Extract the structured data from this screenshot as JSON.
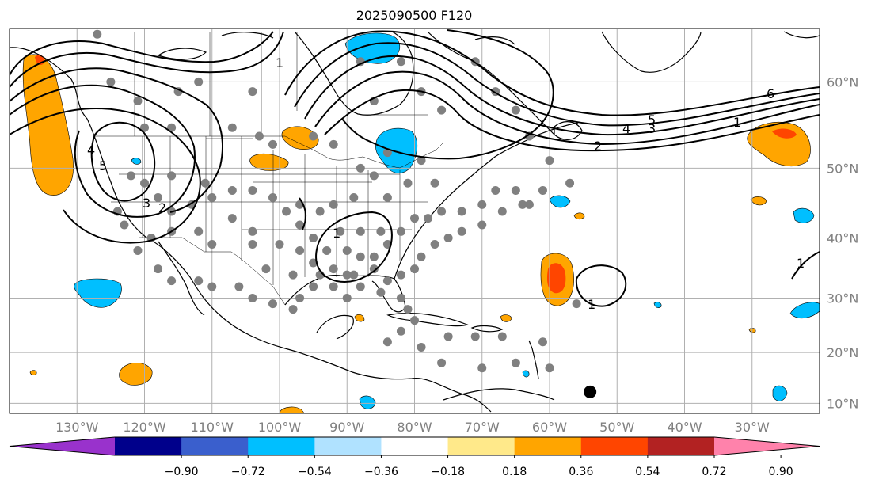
{
  "title": "2025090500 F120",
  "map": {
    "lon_range": [
      -140,
      -20
    ],
    "lat_range": [
      8,
      65
    ],
    "lon_ticks": [
      {
        "value": -130,
        "label": "130°W"
      },
      {
        "value": -120,
        "label": "120°W"
      },
      {
        "value": -110,
        "label": "110°W"
      },
      {
        "value": -100,
        "label": "100°W"
      },
      {
        "value": -90,
        "label": "90°W"
      },
      {
        "value": -80,
        "label": "80°W"
      },
      {
        "value": -70,
        "label": "70°W"
      },
      {
        "value": -60,
        "label": "60°W"
      },
      {
        "value": -50,
        "label": "50°W"
      },
      {
        "value": -40,
        "label": "40°W"
      },
      {
        "value": -30,
        "label": "30°W"
      }
    ],
    "lat_ticks": [
      {
        "value": 60,
        "label": "60°N"
      },
      {
        "value": 50,
        "label": "50°N"
      },
      {
        "value": 40,
        "label": "40°N"
      },
      {
        "value": 30,
        "label": "30°N"
      },
      {
        "value": 20,
        "label": "20°N"
      },
      {
        "value": 10,
        "label": "10°N"
      }
    ],
    "grid": true
  },
  "colorbar": {
    "boundaries": [
      -0.9,
      -0.72,
      -0.54,
      -0.36,
      -0.18,
      0.18,
      0.36,
      0.54,
      0.72,
      0.9
    ],
    "tick_labels": [
      "−0.90",
      "−0.72",
      "−0.54",
      "−0.36",
      "−0.18",
      "0.18",
      "0.36",
      "0.54",
      "0.72",
      "0.90"
    ],
    "colors": [
      "#9932cc",
      "#00008b",
      "#3a5fcd",
      "#00bfff",
      "#b0e2ff",
      "#ffffff",
      "#ffe98a",
      "#ffa500",
      "#ff4500",
      "#b22222",
      "#ff82ab"
    ],
    "extend": "both"
  },
  "contour_labels": [
    "6",
    "5",
    "4",
    "3",
    "2",
    "1",
    "4",
    "5",
    "3",
    "2",
    "1",
    "1",
    "1",
    "1"
  ],
  "storm_marker": {
    "lon": -54,
    "lat": 12.3,
    "color": "#000000"
  },
  "station_points": [
    [
      -127,
      64.5
    ],
    [
      -125,
      60
    ],
    [
      -121,
      58
    ],
    [
      -120,
      55
    ],
    [
      -116,
      55
    ],
    [
      -115,
      59
    ],
    [
      -112,
      60
    ],
    [
      -107,
      55
    ],
    [
      -104,
      59
    ],
    [
      -103,
      54
    ],
    [
      -101,
      53
    ],
    [
      -95,
      54
    ],
    [
      -92,
      53
    ],
    [
      -88,
      62
    ],
    [
      -86,
      58
    ],
    [
      -82,
      62
    ],
    [
      -79,
      59
    ],
    [
      -76,
      57
    ],
    [
      -71,
      62
    ],
    [
      -68,
      59
    ],
    [
      -65,
      57
    ],
    [
      -63,
      54
    ],
    [
      -60,
      51
    ],
    [
      -57,
      48
    ],
    [
      -61,
      47
    ],
    [
      -64,
      45
    ],
    [
      -67,
      44
    ],
    [
      -70,
      42
    ],
    [
      -73,
      41
    ],
    [
      -75,
      40
    ],
    [
      -77,
      39
    ],
    [
      -79,
      37
    ],
    [
      -80,
      35
    ],
    [
      -82,
      34
    ],
    [
      -84,
      33
    ],
    [
      -85,
      31
    ],
    [
      -82,
      30
    ],
    [
      -81,
      28
    ],
    [
      -80,
      26
    ],
    [
      -82,
      24
    ],
    [
      -84,
      22
    ],
    [
      -79,
      21
    ],
    [
      -75,
      23
    ],
    [
      -71,
      23
    ],
    [
      -67,
      23
    ],
    [
      -61,
      22
    ],
    [
      -76,
      18
    ],
    [
      -70,
      17
    ],
    [
      -65,
      18
    ],
    [
      -60,
      17
    ],
    [
      -56,
      29
    ],
    [
      -122,
      49
    ],
    [
      -124,
      44
    ],
    [
      -123,
      42
    ],
    [
      -121,
      38
    ],
    [
      -118,
      35
    ],
    [
      -116,
      33
    ],
    [
      -112,
      33
    ],
    [
      -110,
      32
    ],
    [
      -106,
      32
    ],
    [
      -104,
      30
    ],
    [
      -101,
      29
    ],
    [
      -98,
      28
    ],
    [
      -97,
      30
    ],
    [
      -95,
      32
    ],
    [
      -92,
      32
    ],
    [
      -90,
      30
    ],
    [
      -88,
      32
    ],
    [
      -86,
      35
    ],
    [
      -88,
      37
    ],
    [
      -90,
      38
    ],
    [
      -93,
      38
    ],
    [
      -95,
      40
    ],
    [
      -97,
      42
    ],
    [
      -99,
      44
    ],
    [
      -101,
      46
    ],
    [
      -104,
      47
    ],
    [
      -107,
      47
    ],
    [
      -110,
      46
    ],
    [
      -113,
      45
    ],
    [
      -116,
      44
    ],
    [
      -118,
      46
    ],
    [
      -120,
      48
    ],
    [
      -116,
      49
    ],
    [
      -111,
      48
    ],
    [
      -107,
      43
    ],
    [
      -104,
      41
    ],
    [
      -100,
      39
    ],
    [
      -97,
      38
    ],
    [
      -95,
      36
    ],
    [
      -92,
      35
    ],
    [
      -89,
      34
    ],
    [
      -86,
      37
    ],
    [
      -84,
      39
    ],
    [
      -82,
      41
    ],
    [
      -80,
      43
    ],
    [
      -78,
      43
    ],
    [
      -76,
      44
    ],
    [
      -73,
      44
    ],
    [
      -70,
      45
    ],
    [
      -68,
      47
    ],
    [
      -65,
      47
    ],
    [
      -63,
      45
    ],
    [
      -89,
      46
    ],
    [
      -92,
      45
    ],
    [
      -94,
      44
    ],
    [
      -97,
      45
    ],
    [
      -84,
      46
    ],
    [
      -81,
      48
    ],
    [
      -86,
      49
    ],
    [
      -88,
      50
    ],
    [
      -79,
      51
    ],
    [
      -84,
      52
    ],
    [
      -77,
      48
    ],
    [
      -91,
      41
    ],
    [
      -88,
      41
    ],
    [
      -85,
      41
    ],
    [
      -104,
      39
    ],
    [
      -110,
      39
    ],
    [
      -112,
      41
    ],
    [
      -116,
      41
    ],
    [
      -119,
      40
    ],
    [
      -102,
      35
    ],
    [
      -98,
      34
    ],
    [
      -94,
      34
    ],
    [
      -90,
      34
    ]
  ]
}
